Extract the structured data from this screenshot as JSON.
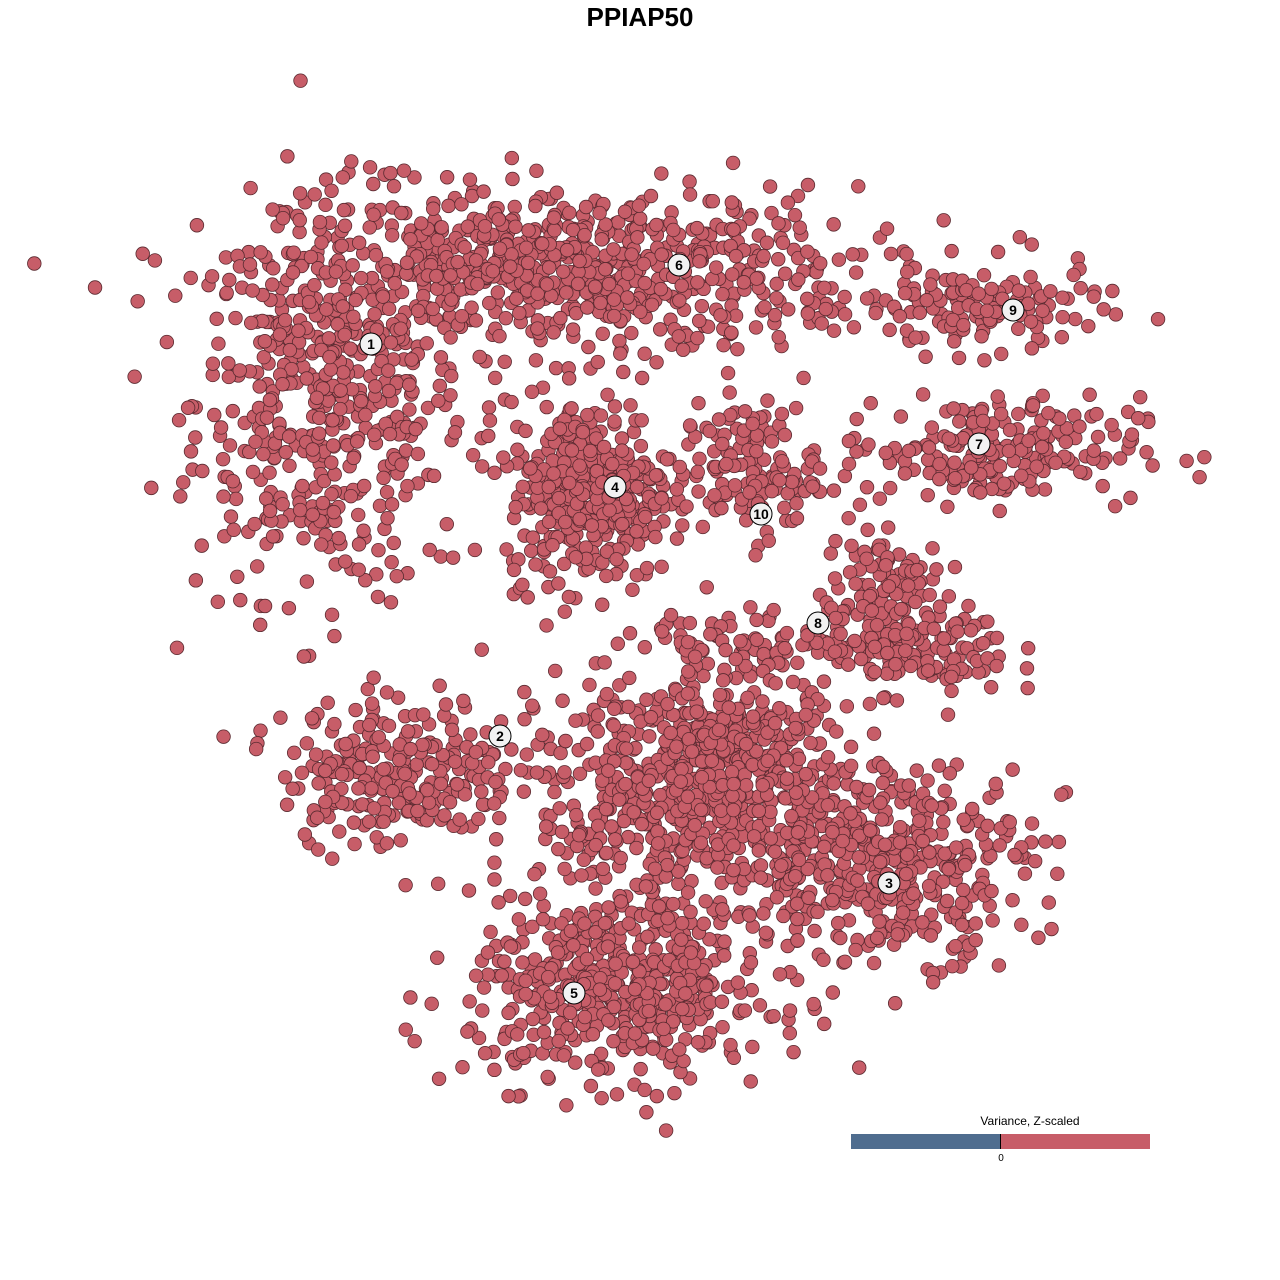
{
  "chart_data": {
    "type": "scatter",
    "title": "PPIAP50",
    "xlabel": "",
    "ylabel": "",
    "axes_visible": false,
    "grid": false,
    "xlim": [
      -64,
      64
    ],
    "ylim": [
      -64,
      64
    ],
    "point_color": "#C75D68",
    "point_edge_color": "#5A2A30",
    "legend": {
      "title": "Variance, Z-scaled",
      "placement": "bottom-right",
      "tick_label": "0",
      "low_color": "#4F6D8F",
      "high_color": "#C75D68"
    },
    "clusters": [
      {
        "label": "1",
        "label_pos": [
          -26.9,
          29.6
        ],
        "blobs": [
          {
            "center": [
              -31,
              24
            ],
            "spread": [
              9,
              13
            ],
            "n": 520
          }
        ]
      },
      {
        "label": "6",
        "label_pos": [
          3.9,
          37.5
        ],
        "blobs": [
          {
            "center": [
              -7,
              37
            ],
            "spread": [
              19,
              5.5
            ],
            "n": 750
          }
        ]
      },
      {
        "label": "9",
        "label_pos": [
          37.3,
          33.0
        ],
        "blobs": [
          {
            "center": [
              34,
              33
            ],
            "spread": [
              8,
              3
            ],
            "n": 130
          }
        ]
      },
      {
        "label": "7",
        "label_pos": [
          33.9,
          19.6
        ],
        "blobs": [
          {
            "center": [
              35,
              19
            ],
            "spread": [
              10,
              3.5
            ],
            "n": 220
          }
        ]
      },
      {
        "label": "4",
        "label_pos": [
          -2.5,
          15.3
        ],
        "blobs": [
          {
            "center": [
              -5,
              15
            ],
            "spread": [
              5.5,
              6
            ],
            "n": 380
          }
        ]
      },
      {
        "label": "10",
        "label_pos": [
          12.1,
          12.6
        ],
        "blobs": [
          {
            "center": [
              11,
              17
            ],
            "spread": [
              4.5,
              4.5
            ],
            "n": 130
          }
        ]
      },
      {
        "label": "8",
        "label_pos": [
          17.8,
          1.7
        ],
        "blobs": [
          {
            "center": [
              24,
              4
            ],
            "spread": [
              4,
              6
            ],
            "n": 120
          },
          {
            "center": [
              28,
              -1
            ],
            "spread": [
              6,
              3
            ],
            "n": 110
          },
          {
            "center": [
              12,
              0
            ],
            "spread": [
              7,
              2
            ],
            "n": 60
          }
        ]
      },
      {
        "label": "2",
        "label_pos": [
          -14.0,
          -9.6
        ],
        "blobs": [
          {
            "center": [
              -24,
              -13
            ],
            "spread": [
              8,
              5
            ],
            "n": 260
          }
        ]
      },
      {
        "label": "5",
        "label_pos": [
          -6.6,
          -35.3
        ],
        "blobs": [
          {
            "center": [
              -2,
              -35
            ],
            "spread": [
              10,
              6
            ],
            "n": 520
          },
          {
            "center": [
              2,
              -16
            ],
            "spread": [
              8,
              9
            ],
            "n": 420
          }
        ]
      },
      {
        "label": "3",
        "label_pos": [
          24.9,
          -24.3
        ],
        "blobs": [
          {
            "center": [
              24,
              -22
            ],
            "spread": [
              10,
              6.5
            ],
            "n": 460
          },
          {
            "center": [
              10,
              -12
            ],
            "spread": [
              7,
              6
            ],
            "n": 300
          }
        ]
      }
    ]
  }
}
